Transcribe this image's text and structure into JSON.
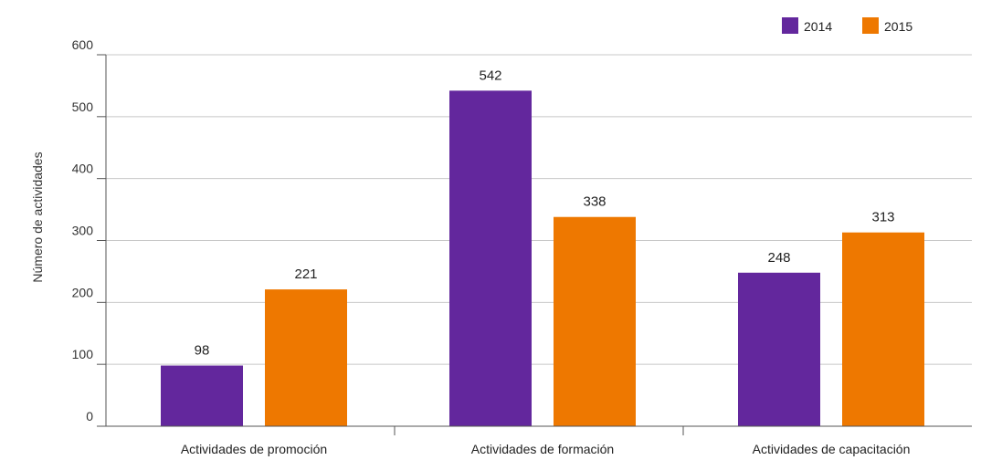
{
  "chart_data": {
    "type": "bar",
    "categories": [
      "Actividades de promoción",
      "Actividades de formación",
      "Actividades de capacitación"
    ],
    "series": [
      {
        "name": "2014",
        "values": [
          98,
          542,
          248
        ],
        "color": "#63279D"
      },
      {
        "name": "2015",
        "values": [
          221,
          338,
          313
        ],
        "color": "#EE7800"
      }
    ],
    "data_labels": [
      [
        "98",
        "542",
        "248"
      ],
      [
        "221",
        "338",
        "313"
      ]
    ],
    "title": "",
    "xlabel": "",
    "ylabel": "Número de actividades",
    "ylim": [
      0,
      600
    ],
    "yticks": [
      0,
      100,
      200,
      300,
      400,
      500,
      600
    ],
    "grid": true,
    "legend_position": "top-right"
  }
}
